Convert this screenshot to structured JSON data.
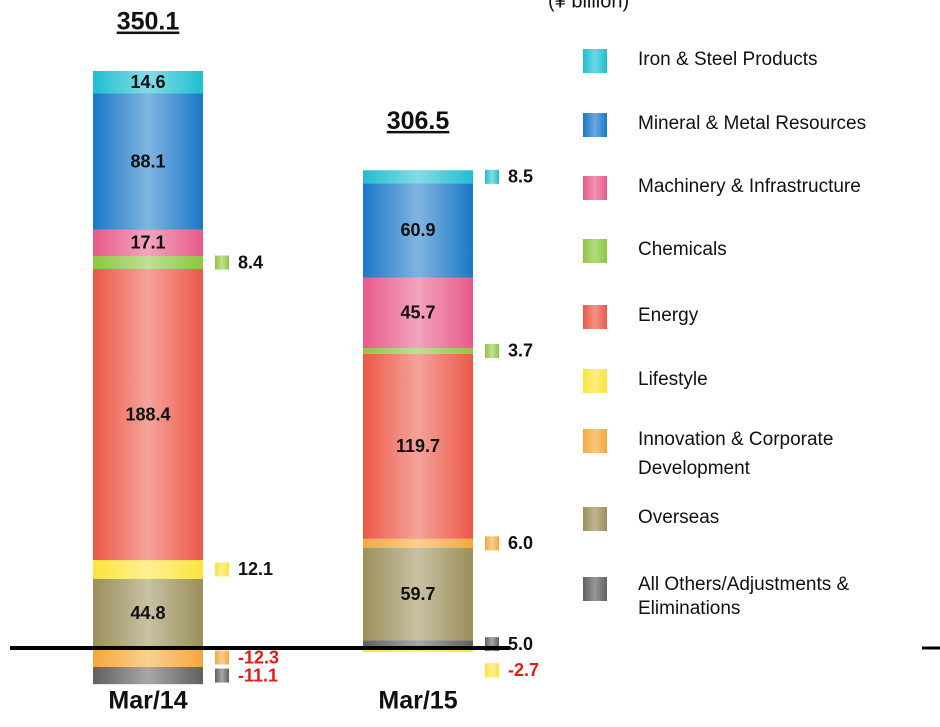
{
  "chart_data": {
    "type": "stacked_bar",
    "unit": "(¥ billion)",
    "categories": [
      "Mar/14",
      "Mar/15"
    ],
    "totals": [
      350.1,
      306.5
    ],
    "series": [
      {
        "name": "Iron & Steel Products",
        "color": "#1fbfd0",
        "values": [
          14.6,
          8.5
        ],
        "value_labels": [
          "14.6",
          "8.5"
        ]
      },
      {
        "name": "Mineral & Metal Resources",
        "color": "#1a78c8",
        "values": [
          88.1,
          60.9
        ],
        "value_labels": [
          "88.1",
          "60.9"
        ]
      },
      {
        "name": "Machinery & Infrastructure",
        "color": "#e85a8a",
        "values": [
          17.1,
          45.7
        ],
        "value_labels": [
          "17.1",
          "45.7"
        ]
      },
      {
        "name": "Chemicals",
        "color": "#8cc63f",
        "values": [
          8.4,
          3.7
        ],
        "value_labels": [
          "8.4",
          "3.7"
        ]
      },
      {
        "name": "Energy",
        "color": "#ec5848",
        "values": [
          188.4,
          119.7
        ],
        "value_labels": [
          "188.4",
          "119.7"
        ]
      },
      {
        "name": "Lifestyle",
        "color": "#fde43a",
        "values": [
          12.1,
          -2.7
        ],
        "value_labels": [
          "12.1",
          "-2.7"
        ]
      },
      {
        "name": "Innovation & Corporate Development",
        "color": "#f5a83a",
        "values": [
          -12.3,
          6.0
        ],
        "value_labels": [
          "-12.3",
          "6.0"
        ]
      },
      {
        "name": "Overseas",
        "color": "#9b8f5a",
        "values": [
          44.8,
          59.7
        ],
        "value_labels": [
          "44.8",
          "59.7"
        ]
      },
      {
        "name": "All Others/Adjustments & Eliminations",
        "color": "#606060",
        "values": [
          -11.1,
          5.0
        ],
        "value_labels": [
          "-11.1",
          "5.0"
        ]
      }
    ]
  }
}
